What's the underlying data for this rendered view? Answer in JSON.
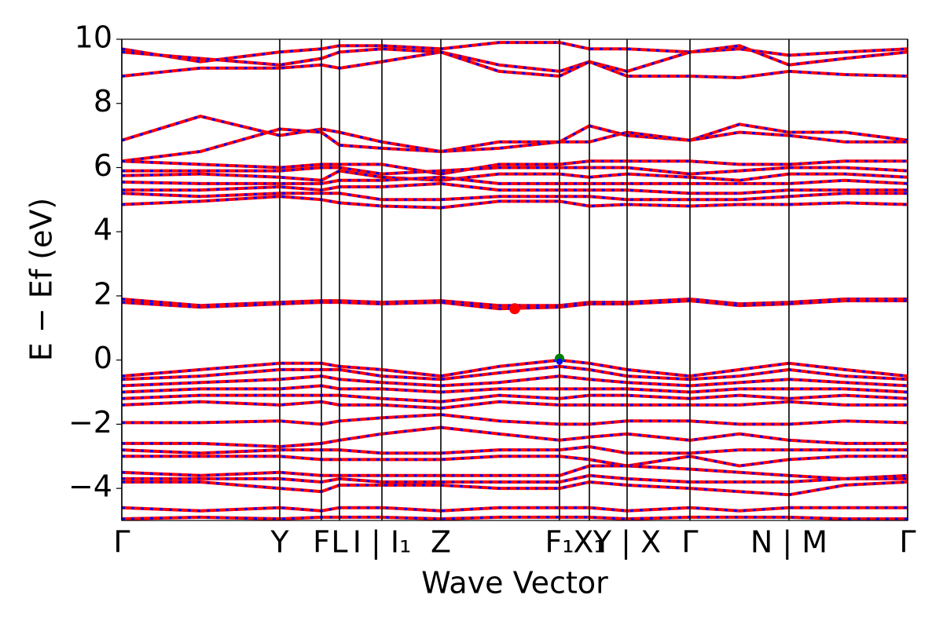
{
  "chart_data": {
    "type": "band_structure",
    "ylabel": "E − Ef (eV)",
    "xlabel": "Wave Vector",
    "xlim": [
      0,
      1
    ],
    "ylim": [
      -5,
      10
    ],
    "yticks": [
      {
        "value": -4,
        "label": "−4"
      },
      {
        "value": -2,
        "label": "−2"
      },
      0,
      2,
      4,
      6,
      8,
      10
    ],
    "xticks": [
      {
        "value": 0,
        "label": "Γ"
      },
      {
        "value": 0.201,
        "label": "Y"
      },
      {
        "value": 0.254,
        "label": "F"
      },
      {
        "value": 0.277,
        "label": "L"
      },
      {
        "value": 0.331,
        "label": "I | I₁"
      },
      {
        "value": 0.406,
        "label": "Z"
      },
      {
        "value": 0.557,
        "label": "F₁"
      },
      {
        "value": 0.595,
        "label": "X₁"
      },
      {
        "value": 0.643,
        "label": "Y | X"
      },
      {
        "value": 0.723,
        "label": "Γ"
      },
      {
        "value": 0.849,
        "label": "N | M"
      },
      {
        "value": 1,
        "label": "Γ"
      }
    ],
    "line_color": "#ff0000",
    "dash_color": "#0000ff",
    "x": [
      0,
      0.1,
      0.201,
      0.254,
      0.277,
      0.331,
      0.406,
      0.48,
      0.557,
      0.595,
      0.643,
      0.723,
      0.786,
      0.849,
      0.92,
      1.0
    ],
    "bands": [
      {
        "values": [
          9.7,
          9.3,
          9.6,
          9.7,
          9.8,
          9.8,
          9.7,
          9.9,
          9.9,
          9.7,
          9.7,
          9.6,
          9.7,
          9.5,
          9.6,
          9.7
        ]
      },
      {
        "values": [
          9.6,
          9.4,
          9.2,
          9.4,
          9.6,
          9.7,
          9.6,
          9.2,
          9.0,
          9.3,
          9.0,
          9.6,
          9.8,
          9.2,
          9.4,
          9.6
        ]
      },
      {
        "values": [
          8.85,
          9.1,
          9.1,
          9.2,
          9.1,
          9.3,
          9.6,
          9.0,
          8.85,
          9.3,
          8.85,
          8.85,
          8.8,
          9.0,
          8.9,
          8.85
        ]
      },
      {
        "values": [
          6.85,
          7.6,
          7.0,
          7.2,
          7.1,
          6.8,
          6.5,
          6.8,
          6.8,
          7.3,
          7.0,
          6.85,
          7.35,
          7.1,
          7.1,
          6.85
        ]
      },
      {
        "values": [
          6.2,
          6.5,
          7.2,
          7.1,
          6.7,
          6.6,
          6.5,
          6.6,
          6.8,
          6.8,
          7.1,
          6.85,
          7.1,
          7.0,
          6.8,
          6.8
        ]
      },
      {
        "values": [
          6.2,
          6.1,
          6.0,
          6.1,
          6.1,
          6.1,
          5.8,
          6.1,
          6.1,
          6.2,
          6.2,
          6.2,
          6.1,
          6.1,
          6.2,
          6.2
        ]
      },
      {
        "values": [
          5.9,
          5.9,
          5.9,
          6.0,
          6.0,
          5.8,
          5.9,
          6.0,
          6.0,
          6.0,
          6.0,
          5.8,
          5.9,
          6.0,
          6.0,
          5.9
        ]
      },
      {
        "values": [
          5.75,
          5.8,
          5.7,
          5.6,
          5.9,
          5.7,
          5.6,
          5.8,
          5.8,
          5.7,
          5.8,
          5.7,
          5.6,
          5.8,
          5.8,
          5.7
        ]
      },
      {
        "values": [
          5.55,
          5.5,
          5.5,
          5.5,
          5.6,
          5.6,
          5.7,
          5.5,
          5.5,
          5.5,
          5.5,
          5.5,
          5.5,
          5.5,
          5.6,
          5.5
        ]
      },
      {
        "values": [
          5.3,
          5.3,
          5.4,
          5.3,
          5.4,
          5.4,
          5.5,
          5.3,
          5.3,
          5.3,
          5.3,
          5.2,
          5.2,
          5.3,
          5.3,
          5.3
        ]
      },
      {
        "values": [
          5.2,
          5.1,
          5.2,
          5.2,
          5.2,
          5.0,
          5.0,
          5.1,
          5.1,
          5.1,
          5.0,
          5.0,
          5.0,
          5.1,
          5.2,
          5.2
        ]
      },
      {
        "values": [
          4.85,
          4.95,
          5.1,
          5.0,
          4.9,
          4.8,
          4.75,
          4.95,
          4.95,
          4.8,
          4.85,
          4.8,
          4.85,
          4.85,
          4.9,
          4.85
        ]
      },
      {
        "values": [
          1.9,
          1.7,
          1.8,
          1.85,
          1.85,
          1.8,
          1.85,
          1.7,
          1.7,
          1.8,
          1.8,
          1.9,
          1.75,
          1.8,
          1.9,
          1.9
        ]
      },
      {
        "values": [
          1.8,
          1.65,
          1.75,
          1.8,
          1.8,
          1.75,
          1.8,
          1.6,
          1.65,
          1.75,
          1.75,
          1.85,
          1.7,
          1.75,
          1.85,
          1.85
        ]
      },
      {
        "values": [
          -0.5,
          -0.3,
          -0.1,
          -0.1,
          -0.2,
          -0.3,
          -0.5,
          -0.2,
          0.0,
          -0.1,
          -0.3,
          -0.5,
          -0.3,
          -0.1,
          -0.3,
          -0.5
        ]
      },
      {
        "values": [
          -0.6,
          -0.5,
          -0.3,
          -0.3,
          -0.3,
          -0.5,
          -0.6,
          -0.4,
          -0.2,
          -0.3,
          -0.5,
          -0.6,
          -0.5,
          -0.3,
          -0.5,
          -0.6
        ]
      },
      {
        "values": [
          -0.8,
          -0.7,
          -0.6,
          -0.5,
          -0.6,
          -0.7,
          -0.8,
          -0.7,
          -0.5,
          -0.6,
          -0.7,
          -0.8,
          -0.7,
          -0.6,
          -0.7,
          -0.8
        ]
      },
      {
        "values": [
          -1.0,
          -0.9,
          -0.9,
          -0.8,
          -0.9,
          -0.9,
          -1.0,
          -0.9,
          -0.9,
          -0.9,
          -0.9,
          -1.0,
          -0.9,
          -0.9,
          -0.9,
          -1.0
        ]
      },
      {
        "values": [
          -1.2,
          -1.1,
          -1.1,
          -1.1,
          -1.1,
          -1.2,
          -1.3,
          -1.1,
          -1.2,
          -1.1,
          -1.1,
          -1.2,
          -1.1,
          -1.2,
          -1.1,
          -1.2
        ]
      },
      {
        "values": [
          -1.4,
          -1.3,
          -1.4,
          -1.3,
          -1.4,
          -1.4,
          -1.5,
          -1.3,
          -1.4,
          -1.4,
          -1.4,
          -1.4,
          -1.4,
          -1.3,
          -1.4,
          -1.4
        ]
      },
      {
        "values": [
          -1.95,
          -1.95,
          -1.9,
          -2.0,
          -1.9,
          -1.8,
          -1.7,
          -1.9,
          -2.0,
          -2.0,
          -1.9,
          -1.9,
          -2.0,
          -2.0,
          -1.9,
          -1.95
        ]
      },
      {
        "values": [
          -2.6,
          -2.6,
          -2.7,
          -2.6,
          -2.5,
          -2.3,
          -2.1,
          -2.3,
          -2.5,
          -2.4,
          -2.3,
          -2.5,
          -2.3,
          -2.5,
          -2.6,
          -2.6
        ]
      },
      {
        "values": [
          -2.8,
          -2.9,
          -2.8,
          -2.8,
          -2.8,
          -2.9,
          -2.9,
          -2.8,
          -2.8,
          -2.7,
          -2.9,
          -2.9,
          -2.8,
          -2.8,
          -2.8,
          -2.8
        ]
      },
      {
        "values": [
          -3.0,
          -3.0,
          -3.0,
          -3.1,
          -3.1,
          -3.1,
          -3.1,
          -3.0,
          -3.0,
          -3.1,
          -3.3,
          -3.0,
          -3.3,
          -3.1,
          -3.0,
          -3.0
        ]
      },
      {
        "values": [
          -3.5,
          -3.6,
          -3.5,
          -3.6,
          -3.6,
          -3.6,
          -3.6,
          -3.6,
          -3.6,
          -3.3,
          -3.3,
          -3.4,
          -3.5,
          -3.6,
          -3.7,
          -3.6
        ]
      },
      {
        "values": [
          -3.7,
          -3.7,
          -3.7,
          -3.8,
          -3.7,
          -3.8,
          -3.8,
          -3.8,
          -3.8,
          -3.6,
          -3.7,
          -3.8,
          -3.8,
          -3.8,
          -3.7,
          -3.7
        ]
      },
      {
        "values": [
          -3.8,
          -3.8,
          -4.0,
          -4.1,
          -3.9,
          -3.9,
          -3.9,
          -4.0,
          -4.0,
          -3.8,
          -3.9,
          -4.0,
          -4.1,
          -4.2,
          -3.9,
          -3.8
        ]
      },
      {
        "values": [
          -4.6,
          -4.7,
          -4.6,
          -4.7,
          -4.6,
          -4.6,
          -4.7,
          -4.6,
          -4.6,
          -4.6,
          -4.7,
          -4.6,
          -4.7,
          -4.6,
          -4.6,
          -4.6
        ]
      },
      {
        "values": [
          -4.95,
          -4.9,
          -4.95,
          -4.9,
          -4.9,
          -4.9,
          -4.95,
          -4.9,
          -4.9,
          -4.9,
          -4.95,
          -4.9,
          -4.9,
          -4.9,
          -4.95,
          -4.95
        ]
      }
    ],
    "markers": [
      {
        "x": 0.5,
        "y": 1.6,
        "color": "#ff0000",
        "size": 7
      },
      {
        "x": 0.557,
        "y": 0.05,
        "color": "#008000",
        "size": 6
      },
      {
        "x": 0.557,
        "y": -0.05,
        "color": "#0000ff",
        "size": 4
      }
    ]
  }
}
